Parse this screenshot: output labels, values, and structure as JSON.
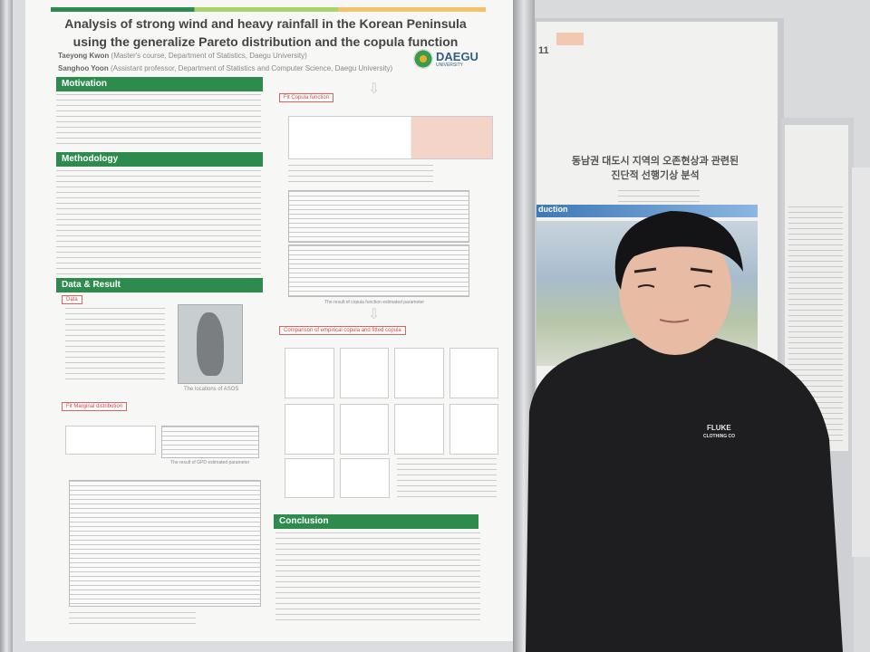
{
  "poster": {
    "title_line1": "Analysis of strong wind and heavy rainfall in the Korean Peninsula",
    "title_line2": "using the generalize Pareto distribution and the copula function",
    "author1_name": "Taeyong Kwon",
    "author1_affil": "(Master's course, Department of Statistics, Daegu University)",
    "author2_name": "Sanghoo Yoon",
    "author2_affil": "(Assistant professor, Department of Statistics and Computer Science, Daegu University)",
    "logo_text": "DAEGU",
    "logo_sub": "UNIVERSITY",
    "sections": {
      "motivation": "Motivation",
      "methodology": "Methodology",
      "data_result": "Data & Result",
      "conclusion": "Conclusion"
    },
    "tags": {
      "data": "Data",
      "marginal": "Fit Marginal distribution",
      "copula": "Fit Copula function",
      "comparison": "Comparison of empirical copula and fitted copula"
    },
    "captions": {
      "map": "The locations of ASOS",
      "gpd": "The result of GPD estimated parameter",
      "copula_param": "The result of copula function estimated parameter"
    },
    "accent_colors": {
      "green": "#2e8b4e",
      "light_green": "#a8d26a",
      "orange": "#f3c26b"
    }
  },
  "back_poster": {
    "title_line1": "동남권 대도시 지역의 오존현상과 관련된",
    "title_line2": "진단적 선행기상 분석",
    "section": "duction",
    "number": "11"
  }
}
